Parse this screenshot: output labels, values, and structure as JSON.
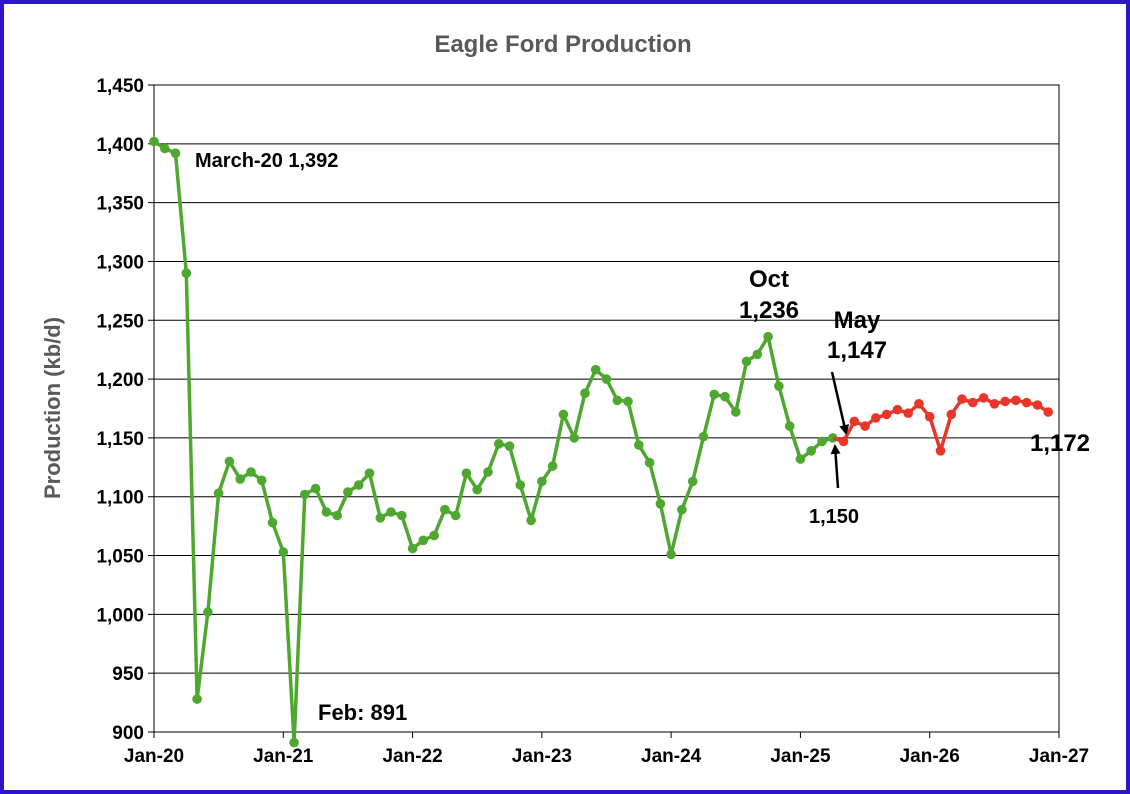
{
  "chart_data": {
    "type": "line",
    "title": "Eagle Ford Production",
    "ylabel": "Production (kb/d)",
    "xlabel": "",
    "ylim": [
      900,
      1450
    ],
    "yticks": [
      900,
      950,
      1000,
      1050,
      1100,
      1150,
      1200,
      1250,
      1300,
      1350,
      1400,
      1450
    ],
    "ytick_labels": [
      "900",
      "950",
      "1,000",
      "1,050",
      "1,100",
      "1,150",
      "1,200",
      "1,250",
      "1,300",
      "1,350",
      "1,400",
      "1,450"
    ],
    "xlim": [
      "2020-01",
      "2027-01"
    ],
    "xticks": [
      "2020-01",
      "2021-01",
      "2022-01",
      "2023-01",
      "2024-01",
      "2025-01",
      "2026-01",
      "2027-01"
    ],
    "xtick_labels": [
      "Jan-20",
      "Jan-21",
      "Jan-22",
      "Jan-23",
      "Jan-24",
      "Jan-25",
      "Jan-26",
      "Jan-27"
    ],
    "grid": "horizontal",
    "series": [
      {
        "color": "#4ea72e",
        "x": [
          "2020-01",
          "2020-02",
          "2020-03",
          "2020-04",
          "2020-05",
          "2020-06",
          "2020-07",
          "2020-08",
          "2020-09",
          "2020-10",
          "2020-11",
          "2020-12",
          "2021-01",
          "2021-02",
          "2021-03",
          "2021-04",
          "2021-05",
          "2021-06",
          "2021-07",
          "2021-08",
          "2021-09",
          "2021-10",
          "2021-11",
          "2021-12",
          "2022-01",
          "2022-02",
          "2022-03",
          "2022-04",
          "2022-05",
          "2022-06",
          "2022-07",
          "2022-08",
          "2022-09",
          "2022-10",
          "2022-11",
          "2022-12",
          "2023-01",
          "2023-02",
          "2023-03",
          "2023-04",
          "2023-05",
          "2023-06",
          "2023-07",
          "2023-08",
          "2023-09",
          "2023-10",
          "2023-11",
          "2023-12",
          "2024-01",
          "2024-02",
          "2024-03",
          "2024-04",
          "2024-05",
          "2024-06",
          "2024-07",
          "2024-08",
          "2024-09",
          "2024-10",
          "2024-11",
          "2024-12",
          "2025-01",
          "2025-02",
          "2025-03",
          "2025-04"
        ],
        "y": [
          1402,
          1396,
          1392,
          1290,
          928,
          1002,
          1103,
          1130,
          1115,
          1121,
          1114,
          1078,
          1053,
          891,
          1102,
          1107,
          1087,
          1084,
          1104,
          1110,
          1120,
          1082,
          1087,
          1084,
          1056,
          1063,
          1067,
          1089,
          1084,
          1120,
          1106,
          1121,
          1145,
          1143,
          1110,
          1080,
          1113,
          1126,
          1170,
          1150,
          1188,
          1208,
          1200,
          1182,
          1181,
          1144,
          1129,
          1094,
          1051,
          1089,
          1113,
          1151,
          1187,
          1185,
          1172,
          1215,
          1221,
          1236,
          1194,
          1160,
          1132,
          1139,
          1147,
          1150
        ]
      },
      {
        "color": "#e8362a",
        "x": [
          "2025-04",
          "2025-05",
          "2025-06",
          "2025-07",
          "2025-08",
          "2025-09",
          "2025-10",
          "2025-11",
          "2025-12",
          "2026-01",
          "2026-02",
          "2026-03",
          "2026-04",
          "2026-05",
          "2026-06",
          "2026-07",
          "2026-08",
          "2026-09",
          "2026-10",
          "2026-11",
          "2026-12"
        ],
        "y": [
          1150,
          1147,
          1164,
          1160,
          1167,
          1170,
          1174,
          1171,
          1179,
          1168,
          1139,
          1170,
          1183,
          1180,
          1184,
          1179,
          1181,
          1182,
          1180,
          1178,
          1172
        ]
      }
    ],
    "annotations": [
      {
        "text": "March-20 1,392"
      },
      {
        "text": "Feb: 891"
      },
      {
        "text": "Oct"
      },
      {
        "text": "1,236"
      },
      {
        "text": "May"
      },
      {
        "text": "1,147"
      },
      {
        "text": "1,150"
      },
      {
        "text": "1,172"
      }
    ]
  }
}
